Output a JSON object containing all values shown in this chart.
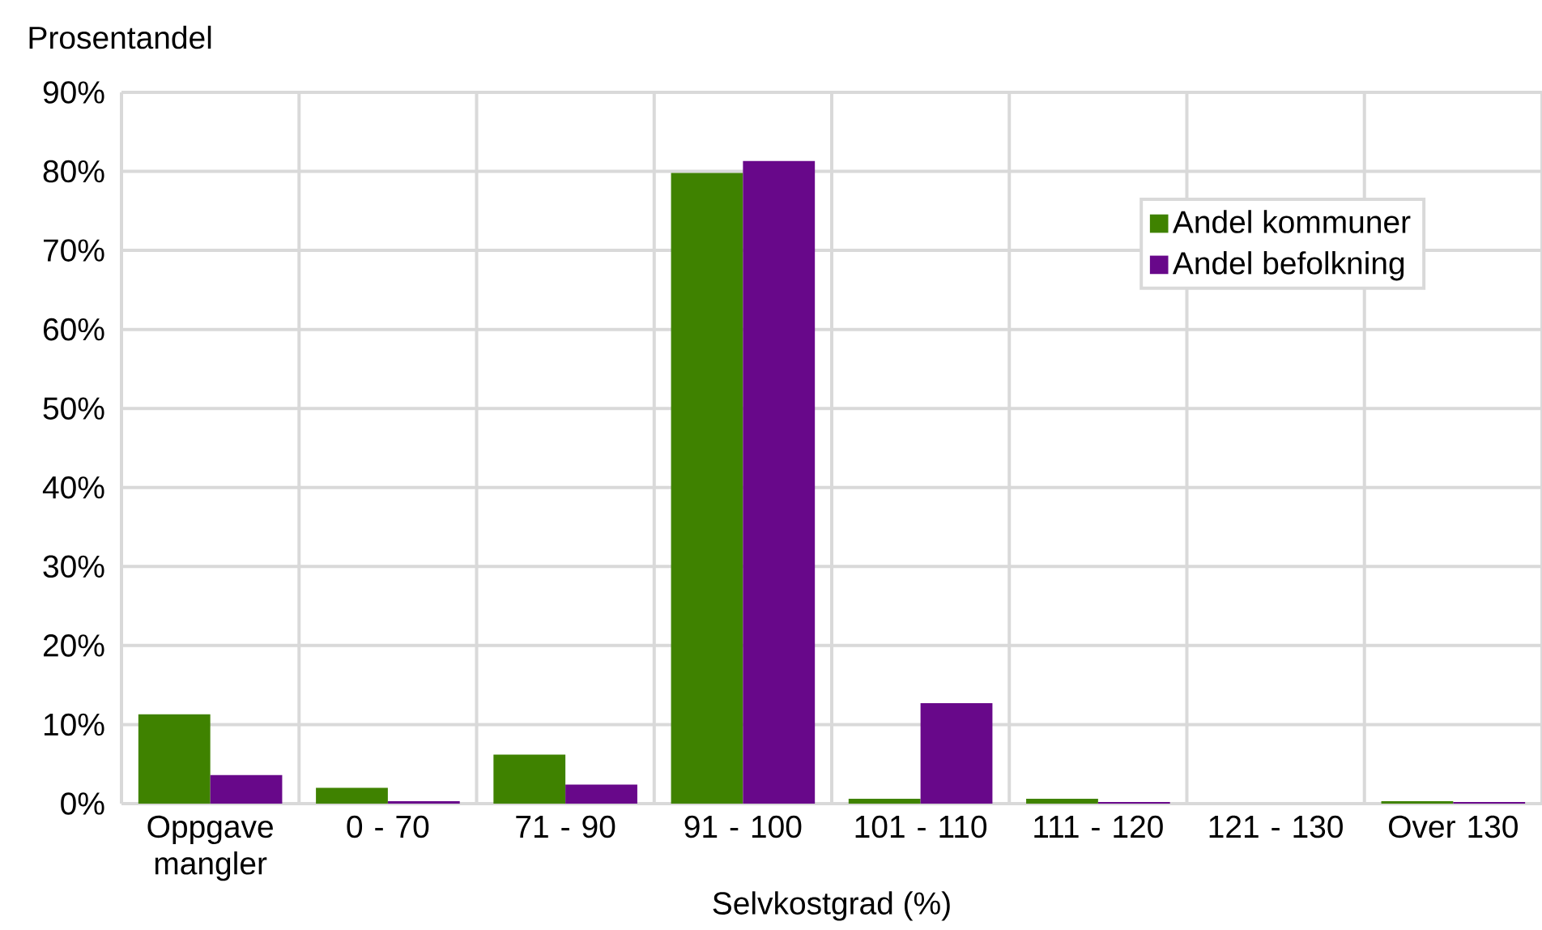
{
  "chart_data": {
    "type": "bar",
    "xlabel": "Selvkostgrad (%)",
    "ylabel": "Prosentandel",
    "categories": [
      "Oppgave mangler",
      "0 - 70",
      "71 - 90",
      "91 - 100",
      "101 - 110",
      "111 - 120",
      "121 - 130",
      "Over 130"
    ],
    "series": [
      {
        "name": "Andel kommuner",
        "color": "#3f8200",
        "values": [
          11.3,
          2.0,
          6.2,
          79.8,
          0.6,
          0.6,
          0,
          0.3
        ]
      },
      {
        "name": "Andel befolkning",
        "color": "#68088a",
        "values": [
          3.6,
          0.3,
          2.4,
          81.3,
          12.7,
          0.2,
          0,
          0.2
        ]
      }
    ],
    "ylim": [
      0,
      90
    ],
    "yticks": [
      {
        "value": 0,
        "label": "0%"
      },
      {
        "value": 10,
        "label": "10%"
      },
      {
        "value": 20,
        "label": "20%"
      },
      {
        "value": 30,
        "label": "30%"
      },
      {
        "value": 40,
        "label": "40%"
      },
      {
        "value": 50,
        "label": "50%"
      },
      {
        "value": 60,
        "label": "60%"
      },
      {
        "value": 70,
        "label": "70%"
      },
      {
        "value": 80,
        "label": "80%"
      },
      {
        "value": 90,
        "label": "90%"
      }
    ],
    "grid": true,
    "legend": "top right"
  }
}
